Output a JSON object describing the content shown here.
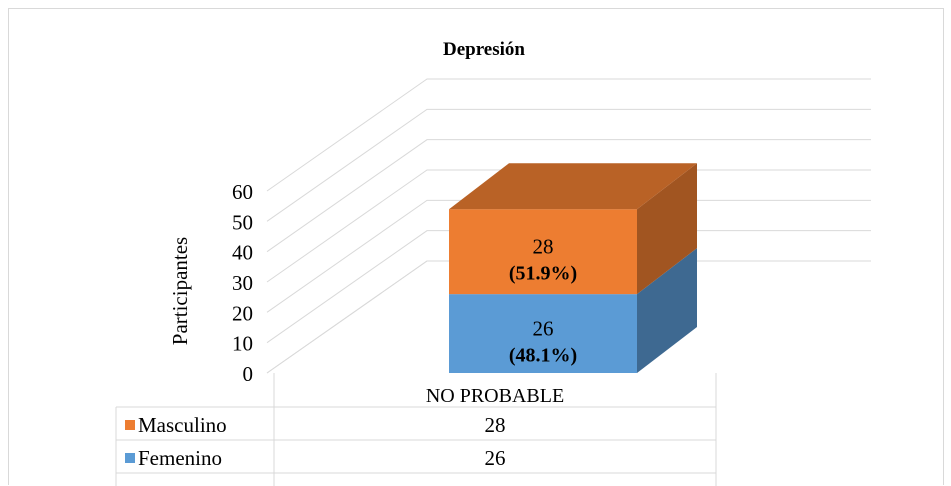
{
  "chart_data": {
    "type": "bar",
    "stacked": true,
    "three_d": true,
    "title": "Depresión",
    "ylabel": "Participantes",
    "ylim": [
      0,
      60
    ],
    "yticks": [
      0,
      10,
      20,
      30,
      40,
      50,
      60
    ],
    "categories": [
      "NO PROBABLE"
    ],
    "series": [
      {
        "name": "Femenino",
        "values": [
          26
        ],
        "labels": [
          "(48.1%)"
        ],
        "color": "#5b9bd5"
      },
      {
        "name": "Masculino",
        "values": [
          28
        ],
        "labels": [
          "(51.9%)"
        ],
        "color": "#ed7d31"
      }
    ],
    "data_table": {
      "rows": [
        {
          "name": "Masculino",
          "color": "#ed7d31",
          "values": [
            "28"
          ]
        },
        {
          "name": "Femenino",
          "color": "#5b9bd5",
          "values": [
            "26"
          ]
        }
      ]
    },
    "grid": true
  }
}
